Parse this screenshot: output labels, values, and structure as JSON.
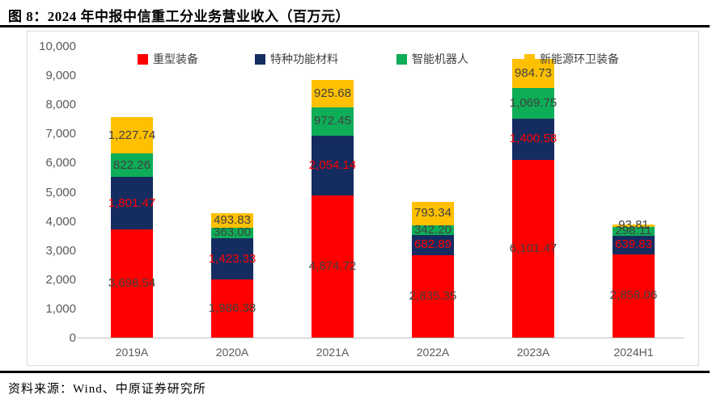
{
  "title": "图 8：2024 年中报中信重工分业务营业收入（百万元）",
  "source": "资料来源：Wind、中原证券研究所",
  "colors": {
    "heavy_equipment": "#FF0000",
    "special_materials": "#152C61",
    "robots": "#0EAD57",
    "new_energy_sanitation": "#FFC000",
    "label_default": "#404040",
    "label_on_navy": "#FF0000",
    "axis_text": "#595959",
    "frame_border": "#D9D9D9",
    "axis_line": "#BFBFBF"
  },
  "chart_data": {
    "type": "bar",
    "stacked": true,
    "title": "图 8：2024 年中报中信重工分业务营业收入（百万元）",
    "xlabel": "",
    "ylabel": "",
    "ylim": [
      0,
      10000
    ],
    "ytick_step": 1000,
    "grid": false,
    "legend_position": "top",
    "categories": [
      "2019A",
      "2020A",
      "2021A",
      "2022A",
      "2023A",
      "2024H1"
    ],
    "series": [
      {
        "name": "重型装备",
        "color": "#FF0000",
        "label_color": "#404040",
        "values": [
          3698.54,
          1986.38,
          4874.72,
          2835.35,
          6101.47,
          2858.06
        ]
      },
      {
        "name": "特种功能材料",
        "color": "#152C61",
        "label_color": "#FF0000",
        "values": [
          1801.47,
          1423.33,
          2054.14,
          682.89,
          1400.58,
          639.83
        ]
      },
      {
        "name": "智能机器人",
        "color": "#0EAD57",
        "label_color": "#404040",
        "values": [
          822.26,
          363.0,
          972.45,
          342.2,
          1069.75,
          298.11
        ]
      },
      {
        "name": "新能源环卫装备",
        "color": "#FFC000",
        "label_color": "#404040",
        "values": [
          1227.74,
          493.83,
          925.68,
          793.34,
          984.73,
          93.81
        ]
      }
    ]
  }
}
